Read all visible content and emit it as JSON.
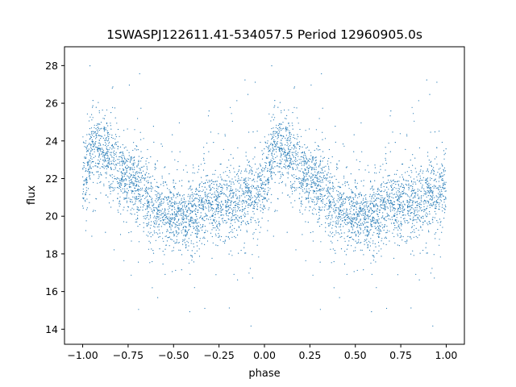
{
  "chart_data": {
    "type": "scatter",
    "title": "1SWASPJ122611.41-534057.5 Period 12960905.0s",
    "xlabel": "phase",
    "ylabel": "flux",
    "xlim": [
      -1.1,
      1.1
    ],
    "ylim": [
      13.2,
      29.0
    ],
    "xticks": [
      -1.0,
      -0.75,
      -0.5,
      -0.25,
      0.0,
      0.25,
      0.5,
      0.75,
      1.0
    ],
    "xtick_labels": [
      "−1.00",
      "−0.75",
      "−0.50",
      "−0.25",
      "0.00",
      "0.25",
      "0.50",
      "0.75",
      "1.00"
    ],
    "yticks": [
      14,
      16,
      18,
      20,
      22,
      24,
      26,
      28
    ],
    "ytick_labels": [
      "14",
      "16",
      "18",
      "20",
      "22",
      "24",
      "26",
      "28"
    ],
    "grid": false,
    "point_color": "#1f77b4",
    "trend": {
      "phase": [
        0.0,
        0.05,
        0.1,
        0.15,
        0.2,
        0.25,
        0.3,
        0.35,
        0.4,
        0.45,
        0.5,
        0.55,
        0.6,
        0.65,
        0.7,
        0.75,
        0.8,
        0.85,
        0.9,
        0.95,
        1.0
      ],
      "flux": [
        21.6,
        23.5,
        23.8,
        23.3,
        22.4,
        22.0,
        21.5,
        21.0,
        20.6,
        20.3,
        20.1,
        20.0,
        20.1,
        20.4,
        20.6,
        20.5,
        20.7,
        20.9,
        21.0,
        21.2,
        21.6
      ]
    }
  }
}
